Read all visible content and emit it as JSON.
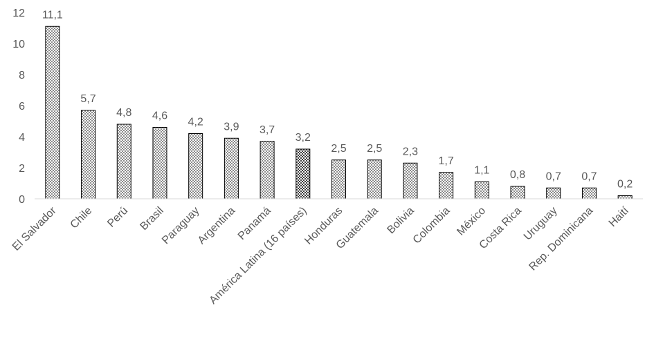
{
  "chart_data": {
    "type": "bar",
    "categories": [
      "El Salvador",
      "Chile",
      "Perú",
      "Brasil",
      "Paraguay",
      "Argentina",
      "Panamá",
      "América Latina (16 países)",
      "Honduras",
      "Guatemala",
      "Bolivia",
      "Colombia",
      "México",
      "Costa Rica",
      "Uruguay",
      "Rep. Dominicana",
      "Haití"
    ],
    "values": [
      11.1,
      5.7,
      4.8,
      4.6,
      4.2,
      3.9,
      3.7,
      3.2,
      2.5,
      2.5,
      2.3,
      1.7,
      1.1,
      0.8,
      0.7,
      0.7,
      0.2
    ],
    "value_labels": [
      "11,1",
      "5,7",
      "4,8",
      "4,6",
      "4,2",
      "3,9",
      "3,7",
      "3,2",
      "2,5",
      "2,5",
      "2,3",
      "1,7",
      "1,1",
      "0,8",
      "0,7",
      "0,7",
      "0,2"
    ],
    "colors": [
      "#8c8c8c",
      "#8c8c8c",
      "#8c8c8c",
      "#8c8c8c",
      "#8c8c8c",
      "#8c8c8c",
      "#8c8c8c",
      "#404040",
      "#8c8c8c",
      "#8c8c8c",
      "#8c8c8c",
      "#8c8c8c",
      "#8c8c8c",
      "#8c8c8c",
      "#8c8c8c",
      "#8c8c8c",
      "#8c8c8c"
    ],
    "ylim": [
      0,
      12
    ],
    "yticks": [
      0,
      2,
      4,
      6,
      8,
      10,
      12
    ],
    "grid": false
  }
}
